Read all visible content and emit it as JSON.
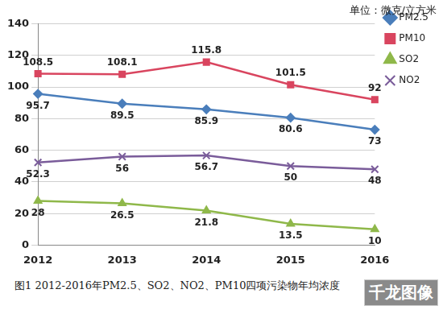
{
  "chart_data": {
    "type": "line",
    "title": "单位：微克/立方米",
    "caption": "图1 2012-2016年PM2.5、SO2、NO2、PM10四项污染物年均浓度",
    "watermark": "千龙图像",
    "categories": [
      "2012",
      "2013",
      "2014",
      "2015",
      "2016"
    ],
    "series": [
      {
        "name": "PM2.5",
        "color": "#4a7ebb",
        "marker": "diamond",
        "values": [
          95.7,
          89.5,
          85.9,
          80.6,
          73
        ]
      },
      {
        "name": "PM10",
        "color": "#d9455f",
        "marker": "square",
        "values": [
          108.5,
          108.1,
          115.8,
          101.5,
          92
        ]
      },
      {
        "name": "SO2",
        "color": "#8fb84a",
        "marker": "triangle",
        "values": [
          28,
          26.5,
          21.8,
          13.5,
          10
        ]
      },
      {
        "name": "NO2",
        "color": "#7a5c9a",
        "marker": "x",
        "values": [
          52.3,
          56,
          56.7,
          50,
          48
        ]
      }
    ],
    "ylim": [
      0,
      140
    ],
    "yticks": [
      0,
      20,
      40,
      60,
      80,
      100,
      120,
      140
    ],
    "grid": true,
    "legend": "right",
    "data_labels": true
  }
}
